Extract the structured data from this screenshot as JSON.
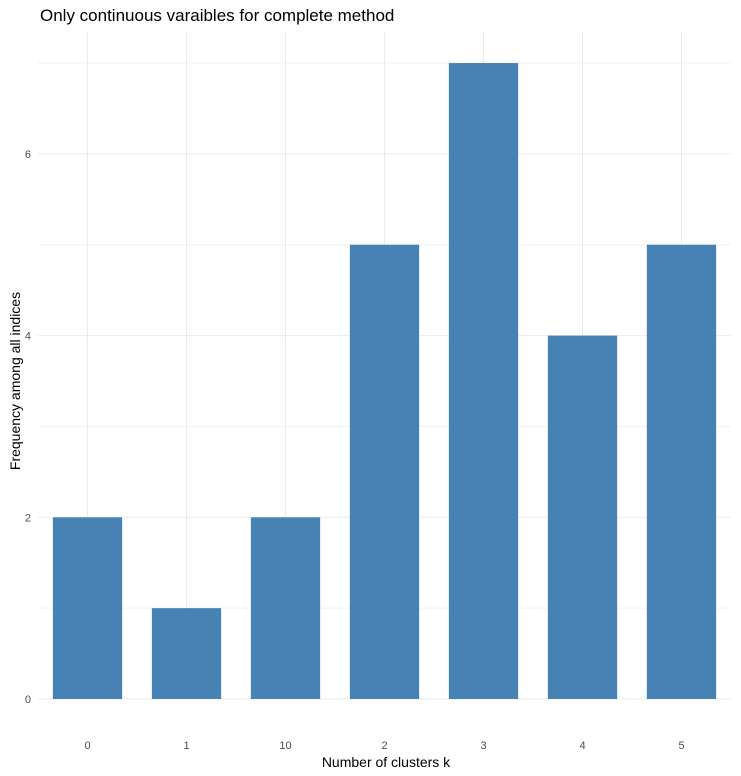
{
  "chart_data": {
    "type": "bar",
    "title": "Only continuous varaibles for complete method",
    "xlabel": "Number of clusters k",
    "ylabel": "Frequency among all indices",
    "categories": [
      "0",
      "1",
      "10",
      "2",
      "3",
      "4",
      "5"
    ],
    "values": [
      2,
      1,
      2,
      5,
      7,
      4,
      5
    ],
    "ylim": [
      0,
      7
    ],
    "yticks": [
      0,
      2,
      4,
      6
    ],
    "bar_color": "#4682b4",
    "grid": true,
    "legend": "none"
  }
}
